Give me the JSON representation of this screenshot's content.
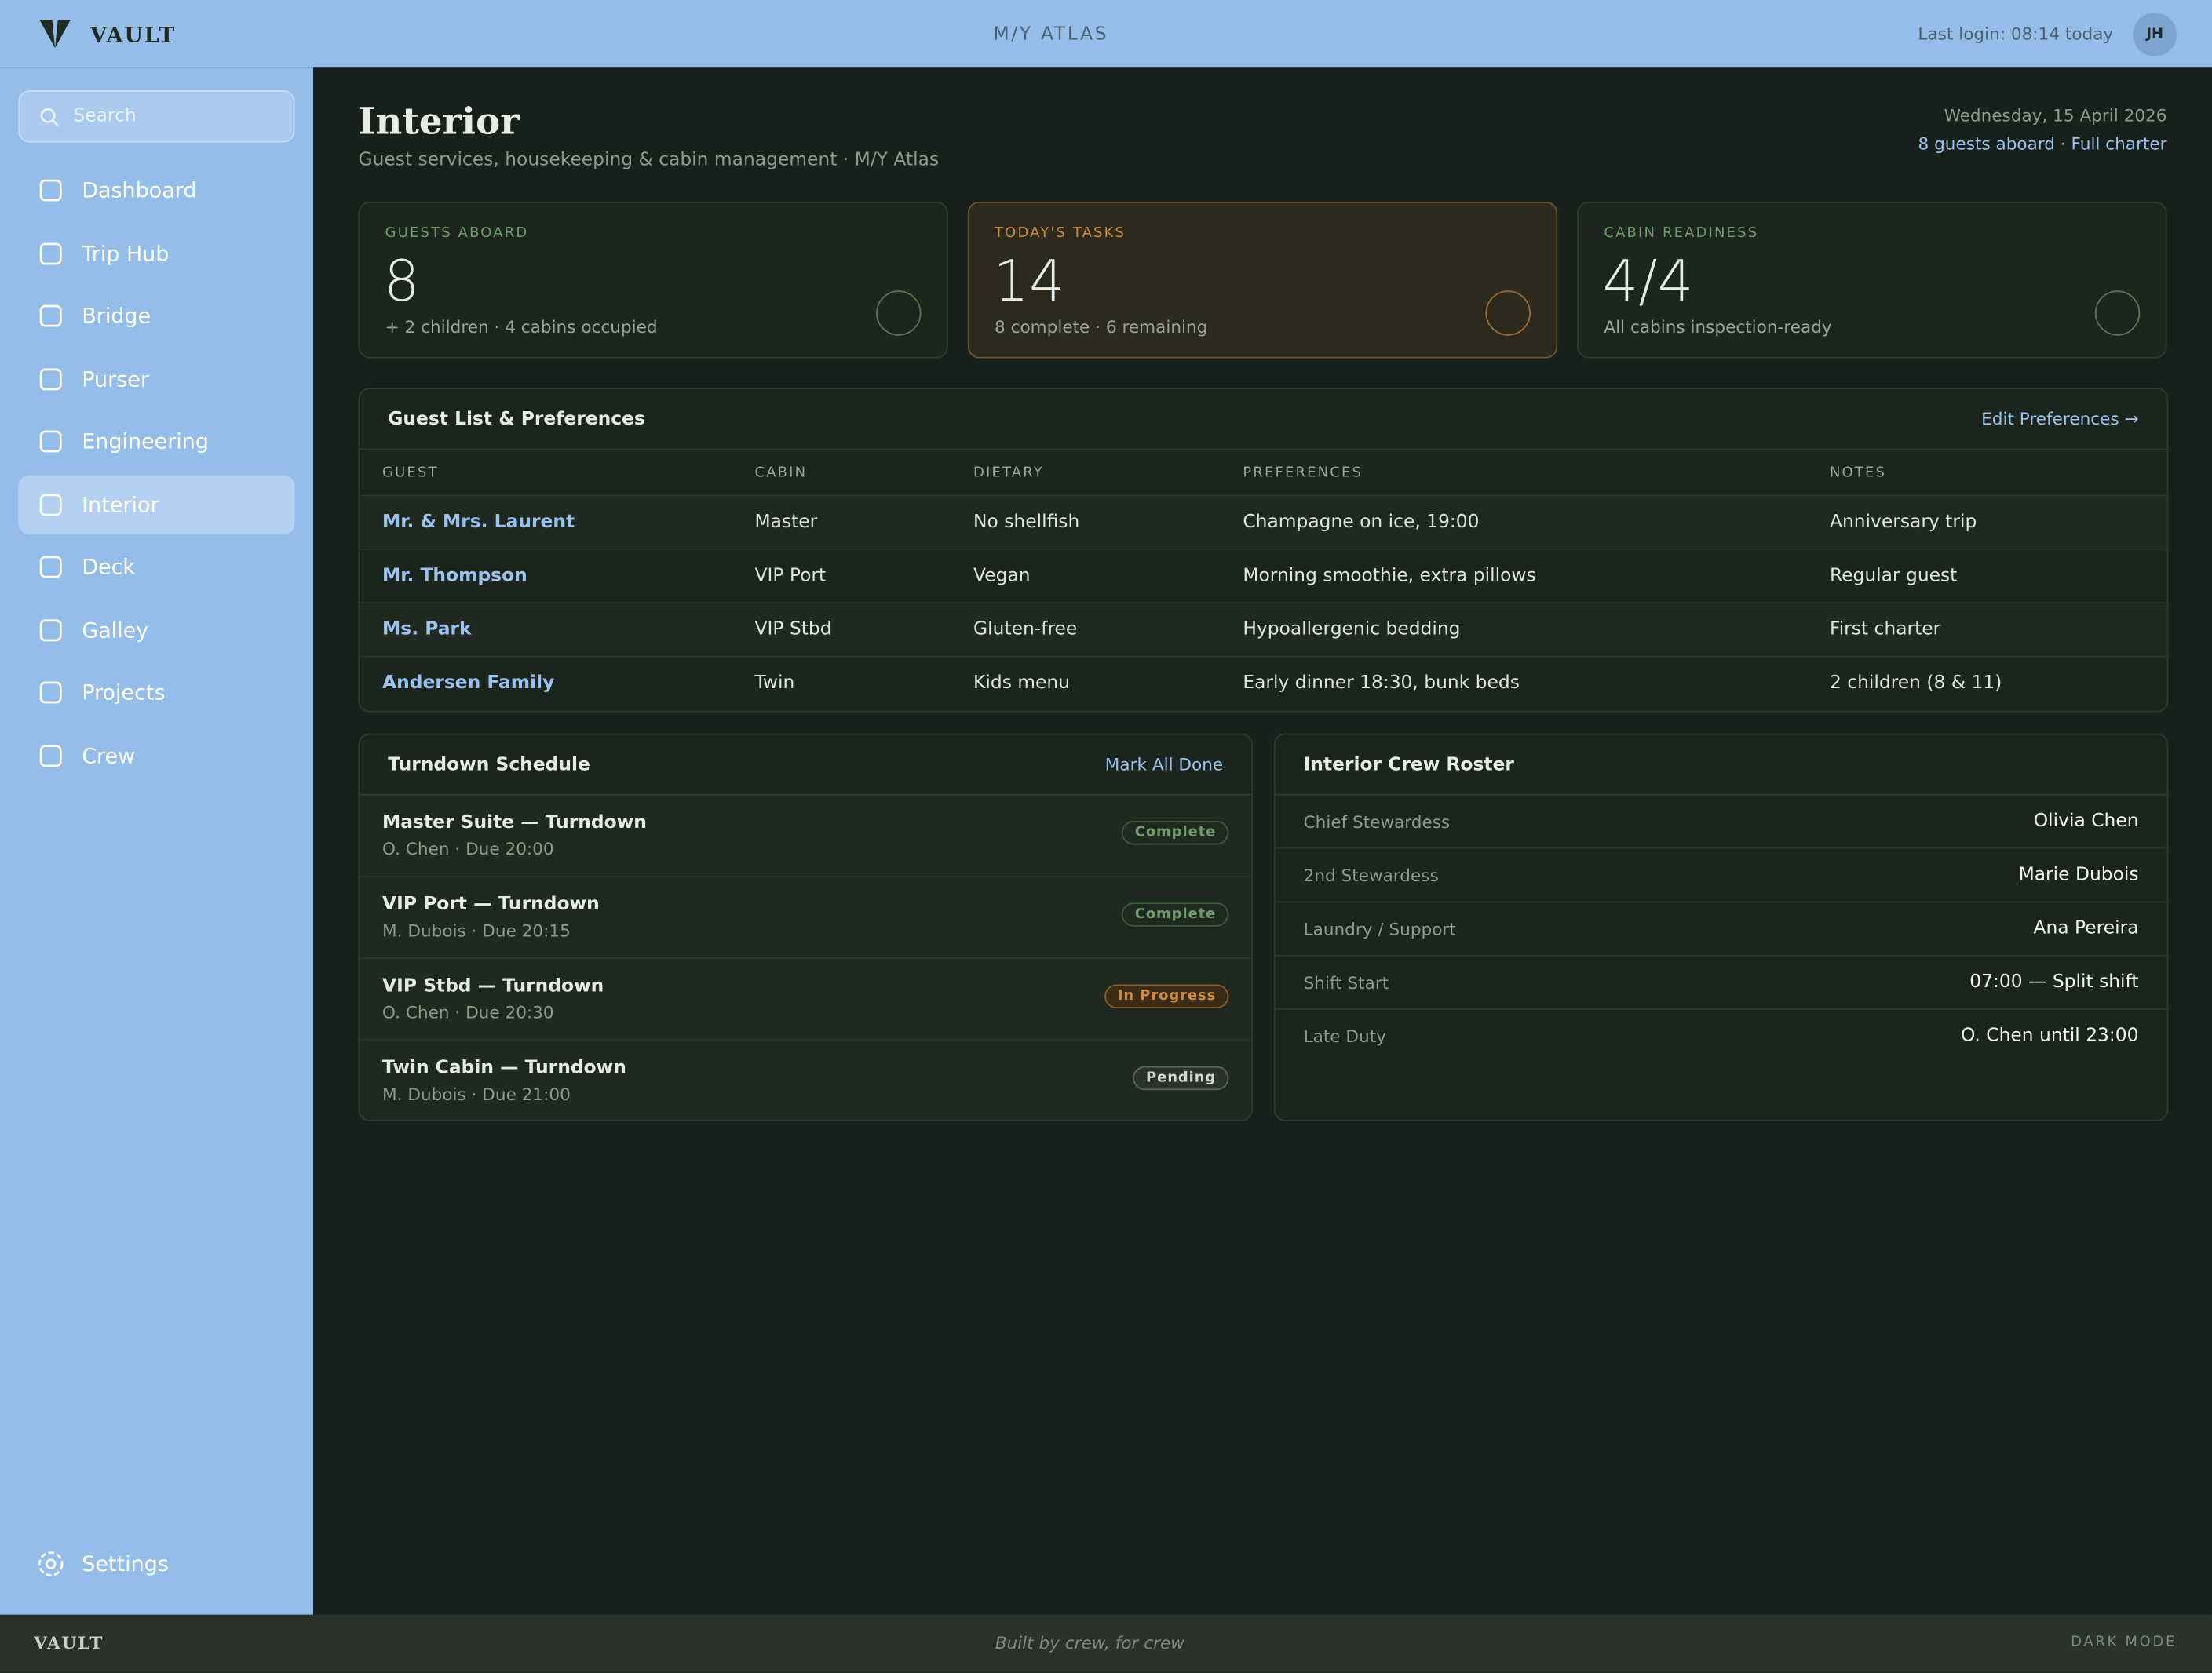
{
  "header": {
    "brand": "VAULT",
    "vessel": "M/Y ATLAS",
    "last_login": "Last login: 08:14 today",
    "avatar": "JH"
  },
  "sidebar": {
    "search_placeholder": "Search",
    "nav": [
      {
        "label": "Dashboard"
      },
      {
        "label": "Trip Hub"
      },
      {
        "label": "Bridge"
      },
      {
        "label": "Purser"
      },
      {
        "label": "Engineering"
      },
      {
        "label": "Interior",
        "active": true
      },
      {
        "label": "Deck"
      },
      {
        "label": "Galley"
      },
      {
        "label": "Projects"
      },
      {
        "label": "Crew"
      }
    ],
    "settings": "Settings"
  },
  "page": {
    "title": "Interior",
    "subtitle": "Guest services, housekeeping & cabin management · M/Y Atlas",
    "date": "Wednesday, 15 April 2026",
    "status": "8 guests aboard · Full charter"
  },
  "stats": [
    {
      "label": "GUESTS ABOARD",
      "value": 8,
      "note": "+ 2 children · 4 cabins occupied",
      "tone": "green"
    },
    {
      "label": "TODAY'S TASKS",
      "value": 14,
      "note": "8 complete · 6 remaining",
      "tone": "amber"
    },
    {
      "label": "CABIN READINESS",
      "value": "4/4",
      "note": "All cabins inspection-ready",
      "tone": "green"
    }
  ],
  "guest_table": {
    "title": "Guest List & Preferences",
    "action": "Edit Preferences →",
    "columns": [
      "GUEST",
      "CABIN",
      "DIETARY",
      "PREFERENCES",
      "NOTES"
    ],
    "rows": [
      [
        "Mr. & Mrs. Laurent",
        "Master",
        "No shellfish",
        "Champagne on ice, 19:00",
        "Anniversary trip"
      ],
      [
        "Mr. Thompson",
        "VIP Port",
        "Vegan",
        "Morning smoothie, extra pillows",
        "Regular guest"
      ],
      [
        "Ms. Park",
        "VIP Stbd",
        "Gluten-free",
        "Hypoallergenic bedding",
        "First charter"
      ],
      [
        "Andersen Family",
        "Twin",
        "Kids menu",
        "Early dinner 18:30, bunk beds",
        "2 children (8 & 11)"
      ]
    ]
  },
  "turndown": {
    "title": "Turndown Schedule",
    "action": "Mark All Done",
    "tasks": [
      {
        "title": "Master Suite — Turndown",
        "meta": "O. Chen · Due 20:00",
        "status": "Complete",
        "tone": "green"
      },
      {
        "title": "VIP Port — Turndown",
        "meta": "M. Dubois · Due 20:15",
        "status": "Complete",
        "tone": "green"
      },
      {
        "title": "VIP Stbd — Turndown",
        "meta": "O. Chen · Due 20:30",
        "status": "In Progress",
        "tone": "amber"
      },
      {
        "title": "Twin Cabin — Turndown",
        "meta": "M. Dubois · Due 21:00",
        "status": "Pending",
        "tone": "grey"
      }
    ]
  },
  "roster": {
    "title": "Interior Crew Roster",
    "rows": [
      [
        "Chief Stewardess",
        "Olivia Chen"
      ],
      [
        "2nd Stewardess",
        "Marie Dubois"
      ],
      [
        "Laundry / Support",
        "Ana Pereira"
      ],
      [
        "Shift Start",
        "07:00 — Split shift"
      ],
      [
        "Late Duty",
        "O. Chen until 23:00"
      ]
    ]
  },
  "footer": {
    "brand": "VAULT",
    "tagline": "Built by crew, for crew",
    "mode": "DARK MODE"
  }
}
